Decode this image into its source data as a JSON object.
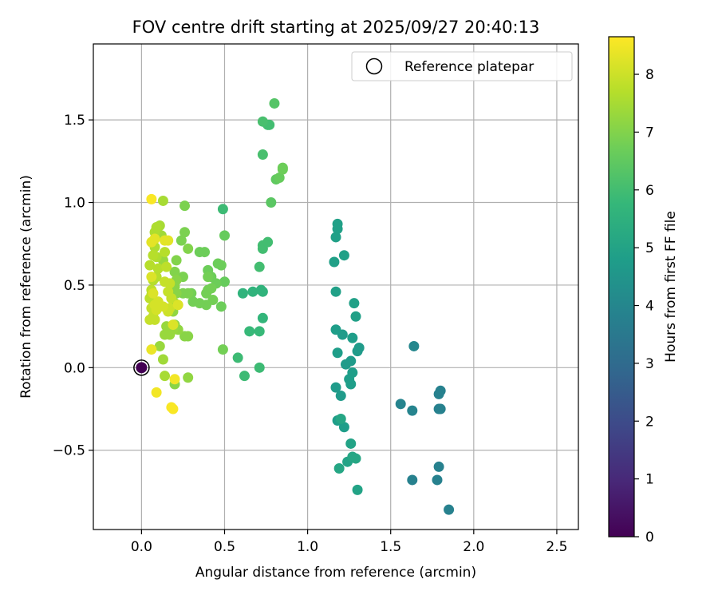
{
  "chart_data": {
    "type": "scatter",
    "title": "FOV centre drift starting at 2025/09/27 20:40:13",
    "xlabel": "Angular distance from reference (arcmin)",
    "ylabel": "Rotation from reference (arcmin)",
    "xlim": [
      -0.29,
      2.63
    ],
    "ylim": [
      -0.98,
      1.96
    ],
    "x_ticks": [
      0.0,
      0.5,
      1.0,
      1.5,
      2.0,
      2.5
    ],
    "x_tick_labels": [
      "0.0",
      "0.5",
      "1.0",
      "1.5",
      "2.0",
      "2.5"
    ],
    "y_ticks": [
      -0.5,
      0.0,
      0.5,
      1.0,
      1.5
    ],
    "y_tick_labels": [
      "−0.5",
      "0.0",
      "0.5",
      "1.0",
      "1.5"
    ],
    "grid": true,
    "legend": {
      "position": "top-right",
      "entries": [
        "Reference platepar"
      ]
    },
    "colorbar": {
      "label": "Hours from first FF file",
      "min": 0,
      "max": 8.65,
      "ticks": [
        0,
        1,
        2,
        3,
        4,
        5,
        6,
        7,
        8
      ],
      "tick_labels": [
        "0",
        "1",
        "2",
        "3",
        "4",
        "5",
        "6",
        "7",
        "8"
      ],
      "colormap": "viridis",
      "colormap_stops": [
        "#440154",
        "#482878",
        "#3e4989",
        "#31688e",
        "#26828e",
        "#1f9e89",
        "#35b779",
        "#6ece58",
        "#b5de2b",
        "#fde725"
      ]
    },
    "reference": {
      "x": 0.0,
      "y": 0.0,
      "hours": 0.0
    },
    "series": [
      {
        "name": "FOV centre drift",
        "points": [
          [
            1.85,
            -0.86,
            3.8
          ],
          [
            1.3,
            -0.74,
            5.0
          ],
          [
            1.63,
            -0.68,
            3.8
          ],
          [
            1.78,
            -0.68,
            3.8
          ],
          [
            1.79,
            -0.6,
            3.8
          ],
          [
            1.19,
            -0.61,
            5.1
          ],
          [
            1.24,
            -0.57,
            5.0
          ],
          [
            1.27,
            -0.54,
            5.1
          ],
          [
            1.29,
            -0.55,
            5.1
          ],
          [
            1.26,
            -0.46,
            5.0
          ],
          [
            1.22,
            -0.36,
            4.8
          ],
          [
            1.18,
            -0.32,
            4.8
          ],
          [
            1.2,
            -0.31,
            5.1
          ],
          [
            1.56,
            -0.22,
            3.9
          ],
          [
            1.63,
            -0.26,
            3.9
          ],
          [
            1.79,
            -0.25,
            3.8
          ],
          [
            1.8,
            -0.25,
            3.8
          ],
          [
            1.79,
            -0.16,
            3.8
          ],
          [
            1.8,
            -0.14,
            3.8
          ],
          [
            1.2,
            -0.17,
            4.7
          ],
          [
            1.17,
            -0.12,
            4.7
          ],
          [
            1.26,
            -0.1,
            4.8
          ],
          [
            1.25,
            -0.07,
            4.8
          ],
          [
            1.27,
            -0.03,
            4.8
          ],
          [
            1.23,
            0.02,
            4.7
          ],
          [
            1.26,
            0.04,
            4.7
          ],
          [
            1.18,
            0.09,
            4.8
          ],
          [
            1.3,
            0.1,
            4.7
          ],
          [
            1.31,
            0.12,
            4.7
          ],
          [
            1.27,
            0.18,
            4.8
          ],
          [
            1.21,
            0.2,
            4.7
          ],
          [
            1.17,
            0.23,
            4.8
          ],
          [
            1.64,
            0.13,
            4.0
          ],
          [
            1.29,
            0.31,
            4.9
          ],
          [
            1.28,
            0.39,
            4.9
          ],
          [
            1.17,
            0.46,
            4.9
          ],
          [
            1.16,
            0.64,
            4.9
          ],
          [
            1.22,
            0.68,
            4.9
          ],
          [
            1.17,
            0.79,
            4.9
          ],
          [
            1.18,
            0.84,
            4.9
          ],
          [
            1.18,
            0.87,
            4.9
          ],
          [
            0.71,
            0.0,
            5.9
          ],
          [
            0.62,
            -0.05,
            5.9
          ],
          [
            0.58,
            0.06,
            5.9
          ],
          [
            0.65,
            0.22,
            5.8
          ],
          [
            0.71,
            0.22,
            5.8
          ],
          [
            0.73,
            0.3,
            5.7
          ],
          [
            0.61,
            0.45,
            5.6
          ],
          [
            0.67,
            0.46,
            5.6
          ],
          [
            0.73,
            0.46,
            5.6
          ],
          [
            0.72,
            0.47,
            5.6
          ],
          [
            0.71,
            0.61,
            6.0
          ],
          [
            0.73,
            0.72,
            6.0
          ],
          [
            0.73,
            0.74,
            6.0
          ],
          [
            0.76,
            0.76,
            6.0
          ],
          [
            0.49,
            0.96,
            5.9
          ],
          [
            0.78,
            1.0,
            6.4
          ],
          [
            0.81,
            1.14,
            6.5
          ],
          [
            0.83,
            1.15,
            6.6
          ],
          [
            0.85,
            1.2,
            6.7
          ],
          [
            0.85,
            1.21,
            6.7
          ],
          [
            0.73,
            1.29,
            6.1
          ],
          [
            0.76,
            1.47,
            6.0
          ],
          [
            0.77,
            1.47,
            6.0
          ],
          [
            0.73,
            1.49,
            6.1
          ],
          [
            0.8,
            1.6,
            6.3
          ],
          [
            0.49,
            0.11,
            6.8
          ],
          [
            0.48,
            0.37,
            6.7
          ],
          [
            0.5,
            0.8,
            6.6
          ],
          [
            0.5,
            0.52,
            6.6
          ],
          [
            0.48,
            0.62,
            6.7
          ],
          [
            0.46,
            0.63,
            6.7
          ],
          [
            0.45,
            0.51,
            6.7
          ],
          [
            0.42,
            0.55,
            6.7
          ],
          [
            0.43,
            0.41,
            6.8
          ],
          [
            0.4,
            0.47,
            6.8
          ],
          [
            0.39,
            0.45,
            6.8
          ],
          [
            0.39,
            0.38,
            6.8
          ],
          [
            0.42,
            0.48,
            6.8
          ],
          [
            0.4,
            0.55,
            6.8
          ],
          [
            0.4,
            0.59,
            6.7
          ],
          [
            0.38,
            0.7,
            6.7
          ],
          [
            0.35,
            0.7,
            6.7
          ],
          [
            0.35,
            0.39,
            6.8
          ],
          [
            0.31,
            0.4,
            6.8
          ],
          [
            0.3,
            0.45,
            6.8
          ],
          [
            0.28,
            0.45,
            6.9
          ],
          [
            0.25,
            0.45,
            6.9
          ],
          [
            0.25,
            0.55,
            6.9
          ],
          [
            0.26,
            0.82,
            6.9
          ],
          [
            0.24,
            0.77,
            6.9
          ],
          [
            0.28,
            0.72,
            7.0
          ],
          [
            0.26,
            0.98,
            6.9
          ],
          [
            0.28,
            -0.06,
            7.2
          ],
          [
            0.28,
            0.19,
            7.1
          ],
          [
            0.26,
            0.19,
            7.1
          ],
          [
            0.21,
            0.65,
            7.0
          ],
          [
            0.2,
            0.58,
            7.0
          ],
          [
            0.21,
            0.53,
            7.1
          ],
          [
            0.2,
            0.49,
            7.1
          ],
          [
            0.21,
            0.45,
            7.1
          ],
          [
            0.2,
            0.39,
            7.2
          ],
          [
            0.19,
            0.34,
            7.2
          ],
          [
            0.2,
            0.26,
            7.2
          ],
          [
            0.22,
            0.23,
            7.2
          ],
          [
            0.19,
            0.23,
            7.3
          ],
          [
            0.17,
            0.2,
            7.3
          ],
          [
            0.15,
            0.25,
            7.3
          ],
          [
            0.14,
            0.2,
            7.3
          ],
          [
            0.13,
            0.05,
            7.4
          ],
          [
            0.14,
            -0.05,
            7.5
          ],
          [
            0.2,
            -0.1,
            7.1
          ],
          [
            0.11,
            0.13,
            7.3
          ],
          [
            0.13,
            0.65,
            7.3
          ],
          [
            0.12,
            0.8,
            7.4
          ],
          [
            0.11,
            0.86,
            7.5
          ],
          [
            0.13,
            1.01,
            7.5
          ],
          [
            0.09,
            0.85,
            7.6
          ],
          [
            0.08,
            0.82,
            7.6
          ],
          [
            0.08,
            0.73,
            7.6
          ],
          [
            0.09,
            0.67,
            7.6
          ],
          [
            0.1,
            0.6,
            7.7
          ],
          [
            0.09,
            0.55,
            7.7
          ],
          [
            0.07,
            0.53,
            7.7
          ],
          [
            0.06,
            0.47,
            7.8
          ],
          [
            0.06,
            0.44,
            7.8
          ],
          [
            0.05,
            0.42,
            7.8
          ],
          [
            0.06,
            0.36,
            7.9
          ],
          [
            0.07,
            0.31,
            7.9
          ],
          [
            0.08,
            0.29,
            7.9
          ],
          [
            0.05,
            0.29,
            7.9
          ],
          [
            0.05,
            0.62,
            7.7
          ],
          [
            0.07,
            0.68,
            7.7
          ],
          [
            0.14,
            0.7,
            7.7
          ],
          [
            0.15,
            0.61,
            7.8
          ],
          [
            0.14,
            0.52,
            7.9
          ],
          [
            0.17,
            0.51,
            7.9
          ],
          [
            0.16,
            0.46,
            7.9
          ],
          [
            0.18,
            0.42,
            7.9
          ],
          [
            0.17,
            0.36,
            8.0
          ],
          [
            0.16,
            0.34,
            8.0
          ],
          [
            0.13,
            0.37,
            8.1
          ],
          [
            0.1,
            0.4,
            8.1
          ],
          [
            0.09,
            0.35,
            8.1
          ],
          [
            0.08,
            0.38,
            8.1
          ],
          [
            0.07,
            0.45,
            8.2
          ],
          [
            0.06,
            0.55,
            8.2
          ],
          [
            0.06,
            0.76,
            8.3
          ],
          [
            0.08,
            0.78,
            8.3
          ],
          [
            0.14,
            0.77,
            8.3
          ],
          [
            0.16,
            0.77,
            8.3
          ],
          [
            0.19,
            0.26,
            8.2
          ],
          [
            0.22,
            0.38,
            8.2
          ],
          [
            0.06,
            1.02,
            8.6
          ],
          [
            0.06,
            0.11,
            8.4
          ],
          [
            0.09,
            -0.15,
            8.5
          ],
          [
            0.2,
            -0.07,
            8.5
          ],
          [
            0.18,
            -0.24,
            8.6
          ],
          [
            0.19,
            -0.25,
            8.6
          ]
        ]
      }
    ]
  }
}
